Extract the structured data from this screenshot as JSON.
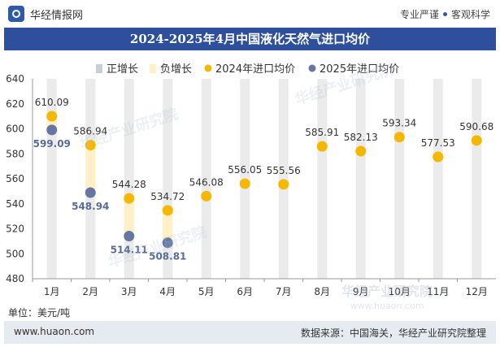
{
  "header": {
    "logo_text": "华经情报网",
    "slogan_left": "专业严谨",
    "slogan_right": "客观科学",
    "logo_icon": "huajing-logo-icon"
  },
  "watermarks": [
    "华经产业研究院",
    "华经产业研究院",
    "华经产业研究院"
  ],
  "footer_watermark": {
    "name": "华经产业研究院",
    "url": "www.huaon.com"
  },
  "chart_data": {
    "type": "bar",
    "title": "2024-2025年4月中国液化天然气进口均价",
    "unit": "单位：美元/吨",
    "categories": [
      "1月",
      "2月",
      "3月",
      "4月",
      "5月",
      "6月",
      "7月",
      "8月",
      "9月",
      "10月",
      "11月",
      "12月"
    ],
    "ylim": [
      480,
      640
    ],
    "yticks": [
      480,
      500,
      520,
      540,
      560,
      580,
      600,
      620,
      640
    ],
    "legend": [
      "正增长",
      "负增长",
      "2024年进口均价",
      "2025年进口均价"
    ],
    "legend_position": "top",
    "series": [
      {
        "name": "2024年进口均价",
        "color": "#f5b800",
        "values": [
          610.09,
          586.94,
          544.28,
          534.72,
          546.08,
          556.05,
          555.56,
          585.91,
          582.13,
          593.34,
          577.53,
          590.68
        ],
        "labels": [
          "610.09",
          "586.94",
          "544.28",
          "534.72",
          "546.08",
          "556.05",
          "555.56",
          "585.91",
          "582.13",
          "593.34",
          "577.53",
          "590.68"
        ]
      },
      {
        "name": "2025年进口均价",
        "color": "#6577a0",
        "values": [
          599.09,
          548.94,
          514.11,
          508.81,
          null,
          null,
          null,
          null,
          null,
          null,
          null,
          null
        ],
        "labels": [
          "599.09",
          "548.94",
          "514.11",
          "508.81"
        ]
      }
    ],
    "change_colors": {
      "positive": "#c9cfd9",
      "negative": "#fff0c7"
    },
    "background_bar_color": "#ebebeb",
    "grid": false
  },
  "footer": {
    "url": "www.huaon.com",
    "source": "数据来源：中国海关，华经产业研究院整理"
  }
}
